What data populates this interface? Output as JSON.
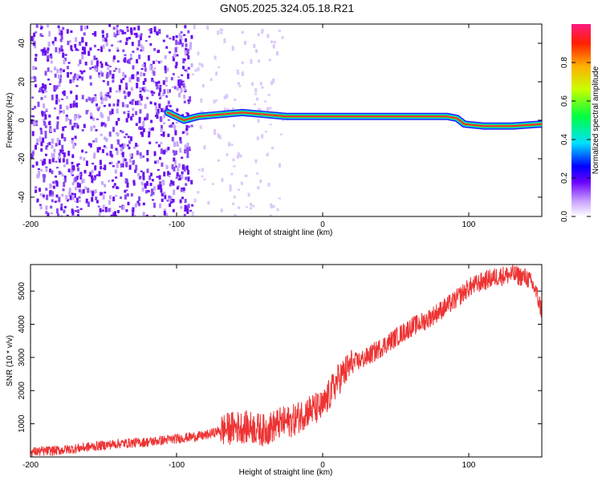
{
  "title": "GN05.2025.324.05.18.R21",
  "chart_data": [
    {
      "type": "heatmap",
      "xlabel": "Height of straight line (km)",
      "ylabel": "Frequency (Hz)",
      "xlim": [
        -200,
        150
      ],
      "ylim": [
        -50,
        50
      ],
      "xticks": [
        -200,
        -100,
        0,
        100
      ],
      "xtick_labels": [
        "-200",
        "-100",
        "0",
        "100"
      ],
      "yticks": [
        -40,
        -20,
        0,
        20,
        40
      ],
      "ytick_labels": [
        "-40",
        "-20",
        "0",
        "20",
        "40"
      ],
      "colorbar": {
        "label": "Normalized spectral amplitude",
        "range": [
          0,
          1
        ],
        "ticks": [
          0.0,
          0.2,
          0.4,
          0.6,
          0.8
        ],
        "tick_labels": [
          "0.0",
          "0.2",
          "0.4",
          "0.6",
          "0.8"
        ]
      },
      "signal_track": {
        "height_km": [
          -106,
          -95,
          -85,
          -70,
          -55,
          -40,
          -25,
          0,
          30,
          60,
          85,
          92,
          97,
          110,
          130,
          150
        ],
        "frequency_hz": [
          4,
          0,
          2,
          3,
          4,
          3,
          2,
          2,
          2,
          2,
          2,
          1,
          -2,
          -3,
          -3,
          -2
        ],
        "peak_amplitude": [
          0.4,
          0.5,
          0.45,
          0.5,
          0.6,
          0.7,
          0.85,
          0.95,
          0.95,
          0.9,
          0.95,
          0.9,
          0.95,
          0.98,
          0.98,
          0.6
        ]
      },
      "noise_floor_region_km": [
        -200,
        -90
      ]
    },
    {
      "type": "line",
      "xlabel": "Height of straight line (km)",
      "ylabel": "SNR (10 * v/v)",
      "xlim": [
        -200,
        150
      ],
      "ylim": [
        0,
        5800
      ],
      "xticks": [
        -200,
        -100,
        0,
        100
      ],
      "xtick_labels": [
        "-200",
        "-100",
        "0",
        "100"
      ],
      "yticks": [
        1000,
        2000,
        3000,
        4000,
        5000
      ],
      "ytick_labels": [
        "1000",
        "2000",
        "3000",
        "4000",
        "5000"
      ],
      "series": [
        {
          "name": "SNR",
          "color": "#ee3333",
          "x": [
            -200,
            -180,
            -160,
            -140,
            -120,
            -100,
            -80,
            -70,
            -60,
            -50,
            -40,
            -30,
            -20,
            -10,
            0,
            10,
            20,
            30,
            40,
            50,
            60,
            70,
            80,
            90,
            95,
            100,
            110,
            120,
            130,
            140,
            145,
            150
          ],
          "y": [
            150,
            200,
            300,
            400,
            450,
            550,
            650,
            800,
            900,
            900,
            800,
            1000,
            1100,
            1400,
            1500,
            2300,
            2800,
            3000,
            3300,
            3600,
            3900,
            4100,
            4400,
            4700,
            4900,
            5100,
            5300,
            5450,
            5500,
            5400,
            5100,
            4400
          ]
        }
      ]
    }
  ]
}
